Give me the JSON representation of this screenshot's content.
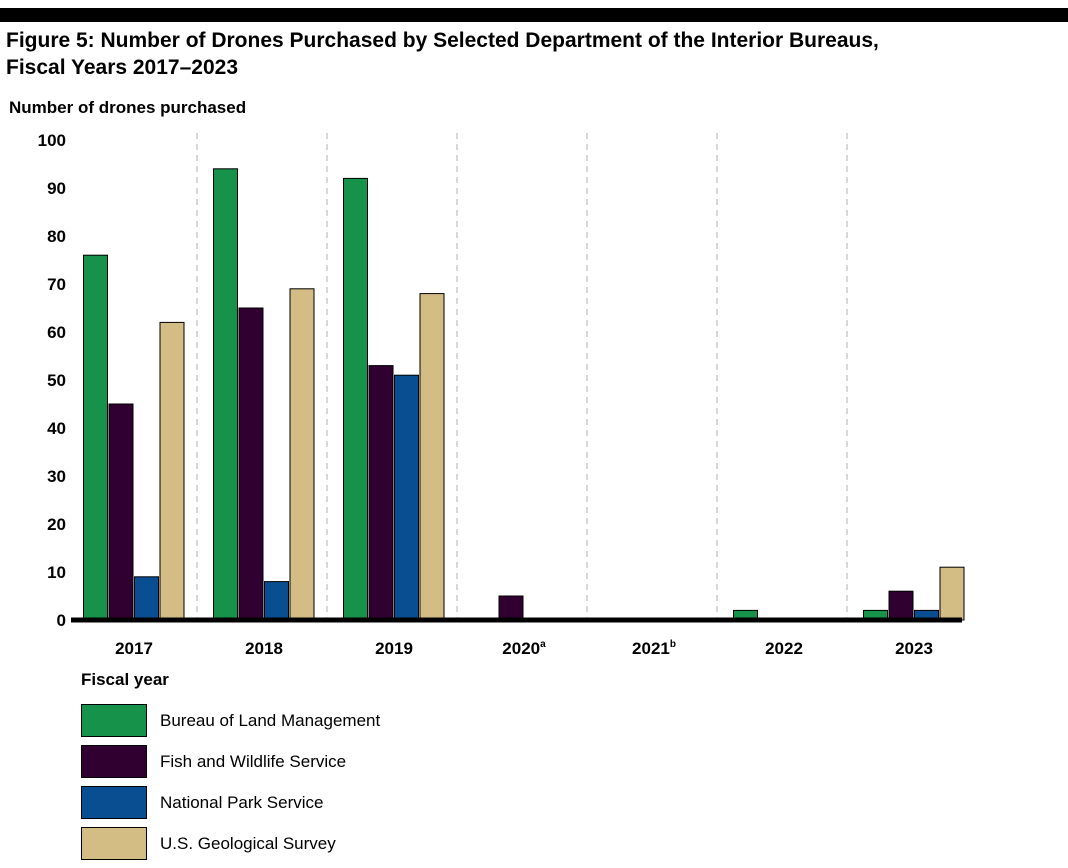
{
  "figure": {
    "title_line1": "Figure 5: Number of Drones Purchased by Selected Department of the Interior Bureaus,",
    "title_line2": "Fiscal Years 2017–2023"
  },
  "chart_data": {
    "type": "bar",
    "title": "Figure 5: Number of Drones Purchased by Selected Department of the Interior Bureaus, Fiscal Years 2017–2023",
    "ylabel": "Number of drones purchased",
    "xlabel": "Fiscal year",
    "ylim": [
      0,
      100
    ],
    "yticks": [
      0,
      10,
      20,
      30,
      40,
      50,
      60,
      70,
      80,
      90,
      100
    ],
    "categories": [
      "2017",
      "2018",
      "2019",
      "2020",
      "2021",
      "2022",
      "2023"
    ],
    "category_superscripts": [
      "",
      "",
      "",
      "a",
      "b",
      "",
      ""
    ],
    "series": [
      {
        "name": "Bureau of Land Management",
        "color": "#16924a",
        "values": [
          76,
          94,
          92,
          0,
          0,
          2,
          2
        ]
      },
      {
        "name": "Fish and Wildlife Service",
        "color": "#300030",
        "values": [
          45,
          65,
          53,
          5,
          0,
          0,
          6
        ]
      },
      {
        "name": "National Park Service",
        "color": "#0a4e92",
        "values": [
          9,
          8,
          51,
          0,
          0,
          0,
          2
        ]
      },
      {
        "name": "U.S. Geological Survey",
        "color": "#d4bd85",
        "values": [
          62,
          69,
          68,
          0,
          0,
          0,
          11
        ]
      }
    ],
    "grid": false,
    "category_separators": "dashed vertical lines",
    "legend_position": "bottom-left"
  }
}
